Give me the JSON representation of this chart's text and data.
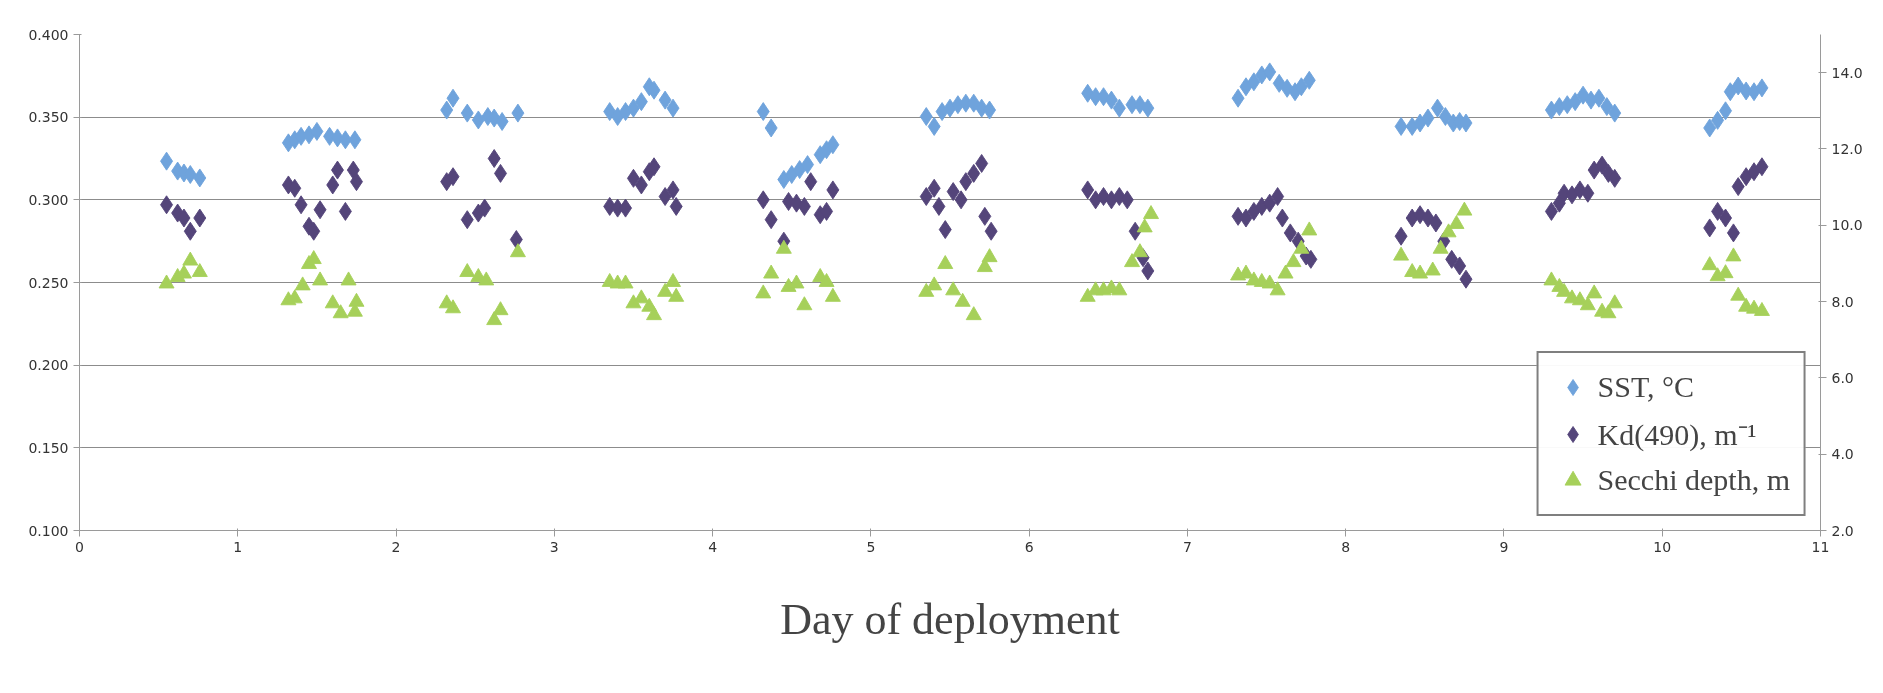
{
  "chart_data": {
    "type": "scatter",
    "xlabel": "Day of deployment",
    "xlim": [
      0,
      11
    ],
    "xticks": [
      0,
      1,
      2,
      3,
      4,
      5,
      6,
      7,
      8,
      9,
      10,
      11
    ],
    "ylim": [
      0.1,
      0.4
    ],
    "yticks": [
      {
        "value": 0.1,
        "label": "0.100"
      },
      {
        "value": 0.15,
        "label": "0.150"
      },
      {
        "value": 0.2,
        "label": "0.200"
      },
      {
        "value": 0.25,
        "label": "0.250"
      },
      {
        "value": 0.3,
        "label": "0.300"
      },
      {
        "value": 0.35,
        "label": "0.350"
      },
      {
        "value": 0.4,
        "label": "0.400"
      }
    ],
    "y2lim": [
      2,
      15
    ],
    "y2ticks": [
      {
        "value": 2,
        "label": "2.0"
      },
      {
        "value": 4,
        "label": "4.0"
      },
      {
        "value": 6,
        "label": "6.0"
      },
      {
        "value": 8,
        "label": "8.0"
      },
      {
        "value": 10,
        "label": "10.0"
      },
      {
        "value": 12,
        "label": "12.0"
      },
      {
        "value": 14,
        "label": "14.0"
      }
    ],
    "grid": "y",
    "legend": "bottom right",
    "series": [
      {
        "name": "SST, °C",
        "color": "#6fa3dc",
        "marker": "diamond",
        "axis": "y2",
        "x": [
          0.55,
          0.62,
          0.66,
          0.7,
          0.76,
          1.32,
          1.36,
          1.4,
          1.45,
          1.5,
          1.58,
          1.63,
          1.68,
          1.74,
          2.32,
          2.36,
          2.45,
          2.52,
          2.58,
          2.62,
          2.67,
          2.77,
          3.35,
          3.4,
          3.45,
          3.5,
          3.55,
          3.6,
          3.63,
          3.7,
          3.75,
          4.32,
          4.37,
          4.45,
          4.5,
          4.55,
          4.6,
          4.68,
          4.72,
          4.76,
          5.35,
          5.4,
          5.45,
          5.5,
          5.55,
          5.6,
          5.65,
          5.7,
          5.75,
          6.37,
          6.42,
          6.47,
          6.52,
          6.57,
          6.65,
          6.7,
          6.75,
          7.32,
          7.37,
          7.42,
          7.47,
          7.52,
          7.58,
          7.63,
          7.68,
          7.72,
          7.77,
          8.35,
          8.42,
          8.47,
          8.52,
          8.58,
          8.63,
          8.68,
          8.72,
          8.76,
          9.3,
          9.35,
          9.4,
          9.45,
          9.5,
          9.55,
          9.6,
          9.65,
          9.7,
          10.3,
          10.35,
          10.4,
          10.43,
          10.48,
          10.53,
          10.58,
          10.63
        ],
        "values": [
          11.68,
          11.42,
          11.37,
          11.33,
          11.24,
          12.16,
          12.24,
          12.33,
          12.37,
          12.46,
          12.33,
          12.29,
          12.24,
          12.24,
          13.02,
          13.33,
          12.94,
          12.76,
          12.85,
          12.81,
          12.72,
          12.94,
          12.98,
          12.85,
          12.98,
          13.07,
          13.24,
          13.63,
          13.54,
          13.28,
          13.07,
          12.98,
          12.55,
          11.2,
          11.33,
          11.46,
          11.59,
          11.85,
          11.98,
          12.11,
          12.85,
          12.59,
          12.98,
          13.07,
          13.16,
          13.2,
          13.2,
          13.07,
          13.02,
          13.46,
          13.37,
          13.37,
          13.28,
          13.07,
          13.16,
          13.16,
          13.07,
          13.33,
          13.63,
          13.76,
          13.94,
          14.02,
          13.72,
          13.59,
          13.5,
          13.63,
          13.8,
          12.59,
          12.59,
          12.68,
          12.81,
          13.07,
          12.85,
          12.68,
          12.72,
          12.68,
          13.02,
          13.11,
          13.16,
          13.24,
          13.41,
          13.28,
          13.33,
          13.11,
          12.94,
          12.55,
          12.75,
          13.0,
          13.5,
          13.65,
          13.52,
          13.5,
          13.6
        ]
      },
      {
        "name": "Kd(490), m⁻¹",
        "color": "#54457a",
        "marker": "diamond",
        "x": [
          0.55,
          0.62,
          0.66,
          0.7,
          0.76,
          1.32,
          1.36,
          1.4,
          1.45,
          1.48,
          1.52,
          1.6,
          1.63,
          1.68,
          1.73,
          1.75,
          2.32,
          2.36,
          2.45,
          2.52,
          2.56,
          2.62,
          2.66,
          2.76,
          3.35,
          3.4,
          3.45,
          3.5,
          3.55,
          3.6,
          3.63,
          3.7,
          3.75,
          3.77,
          4.32,
          4.37,
          4.45,
          4.48,
          4.53,
          4.58,
          4.62,
          4.68,
          4.72,
          4.76,
          5.35,
          5.4,
          5.43,
          5.47,
          5.52,
          5.57,
          5.6,
          5.65,
          5.7,
          5.72,
          5.76,
          6.37,
          6.42,
          6.47,
          6.52,
          6.57,
          6.62,
          6.67,
          6.72,
          6.75,
          7.32,
          7.37,
          7.42,
          7.47,
          7.52,
          7.57,
          7.6,
          7.65,
          7.7,
          7.75,
          7.78,
          8.35,
          8.42,
          8.47,
          8.52,
          8.57,
          8.62,
          8.67,
          8.72,
          8.76,
          9.3,
          9.35,
          9.38,
          9.43,
          9.48,
          9.53,
          9.57,
          9.62,
          9.66,
          9.7,
          10.3,
          10.35,
          10.4,
          10.45,
          10.48,
          10.53,
          10.58,
          10.63
        ],
        "values": [
          0.297,
          0.292,
          0.289,
          0.281,
          0.289,
          0.309,
          0.307,
          0.297,
          0.284,
          0.281,
          0.294,
          0.309,
          0.318,
          0.293,
          0.318,
          0.311,
          0.311,
          0.314,
          0.288,
          0.292,
          0.295,
          0.325,
          0.316,
          0.276,
          0.296,
          0.295,
          0.295,
          0.313,
          0.309,
          0.317,
          0.32,
          0.302,
          0.306,
          0.296,
          0.3,
          0.288,
          0.275,
          0.299,
          0.298,
          0.296,
          0.311,
          0.291,
          0.293,
          0.306,
          0.302,
          0.307,
          0.296,
          0.282,
          0.305,
          0.3,
          0.311,
          0.316,
          0.322,
          0.29,
          0.281,
          0.306,
          0.3,
          0.302,
          0.3,
          0.302,
          0.3,
          0.281,
          0.265,
          0.257,
          0.29,
          0.289,
          0.293,
          0.296,
          0.298,
          0.302,
          0.289,
          0.28,
          0.275,
          0.266,
          0.264,
          0.278,
          0.289,
          0.291,
          0.289,
          0.286,
          0.275,
          0.264,
          0.26,
          0.252,
          0.293,
          0.298,
          0.304,
          0.303,
          0.306,
          0.304,
          0.318,
          0.321,
          0.316,
          0.313,
          0.283,
          0.293,
          0.289,
          0.28,
          0.308,
          0.314,
          0.317,
          0.32
        ]
      },
      {
        "name": "Secchi depth, m",
        "color": "#a6d05a",
        "marker": "triangle",
        "axis": "y2",
        "x": [
          0.55,
          0.62,
          0.66,
          0.7,
          0.76,
          1.32,
          1.36,
          1.41,
          1.45,
          1.48,
          1.52,
          1.6,
          1.65,
          1.7,
          1.74,
          1.75,
          2.32,
          2.36,
          2.45,
          2.52,
          2.57,
          2.62,
          2.66,
          2.77,
          3.35,
          3.4,
          3.45,
          3.5,
          3.55,
          3.6,
          3.63,
          3.7,
          3.75,
          3.77,
          4.32,
          4.37,
          4.45,
          4.48,
          4.53,
          4.58,
          4.68,
          4.72,
          4.76,
          5.35,
          5.4,
          5.47,
          5.52,
          5.58,
          5.65,
          5.72,
          5.75,
          6.37,
          6.42,
          6.47,
          6.52,
          6.57,
          6.65,
          6.7,
          6.73,
          6.77,
          7.32,
          7.37,
          7.42,
          7.47,
          7.52,
          7.57,
          7.62,
          7.67,
          7.72,
          7.77,
          8.35,
          8.42,
          8.47,
          8.55,
          8.6,
          8.65,
          8.7,
          8.75,
          9.3,
          9.35,
          9.38,
          9.43,
          9.48,
          9.53,
          9.57,
          9.62,
          9.66,
          9.7,
          10.3,
          10.35,
          10.4,
          10.45,
          10.48,
          10.53,
          10.58,
          10.63
        ],
        "values": [
          8.47,
          8.64,
          8.73,
          9.07,
          8.77,
          8.03,
          8.08,
          8.42,
          8.98,
          9.11,
          8.55,
          7.95,
          7.69,
          8.55,
          7.73,
          7.99,
          7.95,
          7.82,
          8.77,
          8.64,
          8.55,
          7.51,
          7.77,
          9.29,
          8.51,
          8.47,
          8.47,
          7.95,
          8.08,
          7.86,
          7.64,
          8.25,
          8.51,
          8.12,
          8.21,
          8.73,
          9.38,
          8.38,
          8.47,
          7.9,
          8.64,
          8.51,
          8.12,
          8.25,
          8.42,
          8.98,
          8.29,
          7.99,
          7.64,
          8.9,
          9.16,
          8.12,
          8.29,
          8.29,
          8.34,
          8.29,
          9.03,
          9.29,
          9.94,
          10.29,
          8.68,
          8.73,
          8.55,
          8.51,
          8.47,
          8.29,
          8.73,
          9.03,
          9.38,
          9.86,
          9.2,
          8.77,
          8.73,
          8.81,
          9.38,
          9.81,
          10.03,
          10.38,
          8.55,
          8.38,
          8.25,
          8.08,
          8.03,
          7.9,
          8.21,
          7.73,
          7.69,
          7.95,
          8.95,
          8.66,
          8.74,
          9.18,
          8.15,
          7.86,
          7.81,
          7.75
        ]
      }
    ]
  }
}
